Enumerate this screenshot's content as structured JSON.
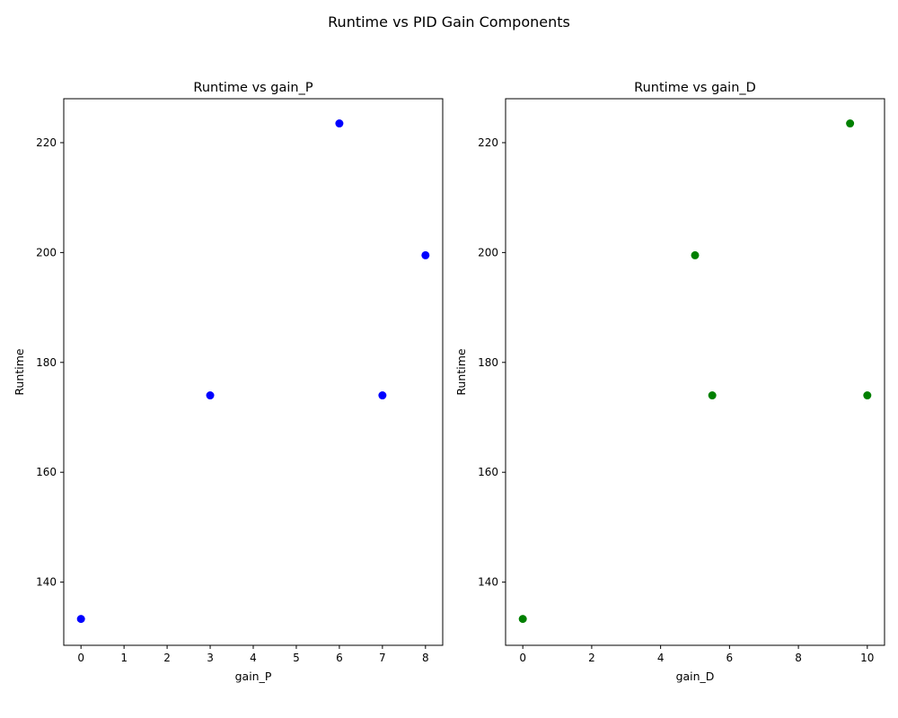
{
  "figure_title": "Runtime vs PID Gain Components",
  "chart_data": [
    {
      "type": "scatter",
      "title": "Runtime vs gain_P",
      "xlabel": "gain_P",
      "ylabel": "Runtime",
      "color": "#0000ff",
      "xlim": [
        -0.4,
        8.4
      ],
      "ylim": [
        128.5,
        228.0
      ],
      "xticks": [
        0,
        1,
        2,
        3,
        4,
        5,
        6,
        7,
        8
      ],
      "yticks": [
        140,
        160,
        180,
        200,
        220
      ],
      "grid": false,
      "x": [
        0,
        3,
        6,
        7,
        8
      ],
      "y": [
        133.3,
        174.0,
        223.5,
        174.0,
        199.5
      ]
    },
    {
      "type": "scatter",
      "title": "Runtime vs gain_D",
      "xlabel": "gain_D",
      "ylabel": "Runtime",
      "color": "#008000",
      "xlim": [
        -0.5,
        10.5
      ],
      "ylim": [
        128.5,
        228.0
      ],
      "xticks": [
        0,
        2,
        4,
        6,
        8,
        10
      ],
      "yticks": [
        140,
        160,
        180,
        200,
        220
      ],
      "grid": false,
      "x": [
        0,
        5,
        5.5,
        9.5,
        10
      ],
      "y": [
        133.3,
        199.5,
        174.0,
        223.5,
        174.0
      ]
    }
  ]
}
